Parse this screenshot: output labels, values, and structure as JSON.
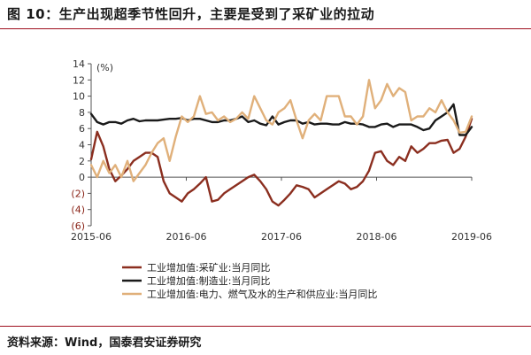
{
  "title": "图 10：生产出现超季节性回升，主要是受到了采矿业的拉动",
  "source": "资料来源：Wind，国泰君安证券研究",
  "chart_data": {
    "type": "line",
    "unit_label": "(%)",
    "ylim": [
      -6,
      14
    ],
    "yticks": [
      14,
      12,
      10,
      8,
      6,
      4,
      2,
      0,
      -2,
      -4,
      -6
    ],
    "ytick_labels": [
      "14",
      "12",
      "10",
      "8",
      "6",
      "4",
      "2",
      "0",
      "(2)",
      "(4)",
      "(6)"
    ],
    "negative_tick_color": "#8a2418",
    "xticks": [
      "2015-06",
      "2016-06",
      "2017-06",
      "2018-06",
      "2019-06"
    ],
    "x_start": "2015-06",
    "x_end": "2019-06",
    "series": [
      {
        "name": "工业增加值:采矿业:当月同比",
        "color": "#8b2e1f",
        "values": [
          2.2,
          5.6,
          3.8,
          1.0,
          -0.5,
          0.2,
          1.0,
          2.0,
          2.5,
          3.0,
          3.0,
          2.5,
          -0.5,
          -2.0,
          -2.5,
          -3.0,
          -2.0,
          -1.5,
          -0.8,
          0.0,
          -3.0,
          -2.8,
          -2.0,
          -1.5,
          -1.0,
          -0.5,
          0.0,
          0.3,
          -0.5,
          -1.5,
          -3.0,
          -3.5,
          -2.8,
          -2.0,
          -1.0,
          -1.2,
          -1.5,
          -2.5,
          -2.0,
          -1.5,
          -1.0,
          -0.5,
          -0.8,
          -1.5,
          -1.2,
          -0.5,
          0.8,
          3.0,
          3.2,
          2.0,
          1.5,
          2.5,
          2.0,
          3.8,
          3.0,
          3.5,
          4.2,
          4.2,
          4.5,
          4.6,
          3.0,
          3.5,
          5.0,
          7.2
        ],
        "values_note": ""
      },
      {
        "name": "工业增加值:制造业:当月同比",
        "color": "#1a1a1a",
        "values": [
          7.8,
          6.8,
          6.5,
          6.8,
          6.8,
          6.6,
          7.0,
          7.2,
          6.9,
          7.0,
          7.0,
          7.0,
          7.1,
          7.2,
          7.2,
          7.3,
          7.0,
          7.2,
          7.2,
          7.0,
          6.8,
          6.8,
          7.0,
          7.0,
          7.2,
          7.5,
          6.8,
          7.0,
          6.6,
          6.4,
          7.5,
          6.5,
          6.8,
          7.0,
          7.0,
          6.6,
          6.8,
          6.5,
          6.6,
          6.6,
          6.5,
          6.5,
          6.8,
          6.6,
          6.6,
          6.5,
          6.2,
          6.2,
          6.5,
          6.6,
          6.2,
          6.5,
          6.5,
          6.5,
          6.2,
          5.8,
          6.0,
          7.0,
          7.5,
          8.0,
          9.0,
          5.2,
          5.2,
          6.2
        ],
        "values_note": ""
      },
      {
        "name": "工业增加值:电力、燃气及水的生产和供应业:当月同比",
        "color": "#e0b07a",
        "values": [
          1.5,
          0.0,
          2.0,
          0.5,
          1.5,
          0.0,
          2.0,
          -0.5,
          0.5,
          1.5,
          3.0,
          4.2,
          4.8,
          2.0,
          5.0,
          7.5,
          6.8,
          7.5,
          10.0,
          7.8,
          8.0,
          7.0,
          7.5,
          6.8,
          7.2,
          8.0,
          7.2,
          10.0,
          8.5,
          7.0,
          6.5,
          8.0,
          8.5,
          9.5,
          7.0,
          4.8,
          7.0,
          7.8,
          7.0,
          10.0,
          10.0,
          10.0,
          7.5,
          7.5,
          6.5,
          7.5,
          12.0,
          8.5,
          9.5,
          11.5,
          10.0,
          11.0,
          10.5,
          7.0,
          7.5,
          7.5,
          8.5,
          8.0,
          9.5,
          8.0,
          7.0,
          5.5,
          5.6,
          7.5
        ],
        "values_note": ""
      }
    ],
    "legend_position": "bottom",
    "grid": false
  }
}
